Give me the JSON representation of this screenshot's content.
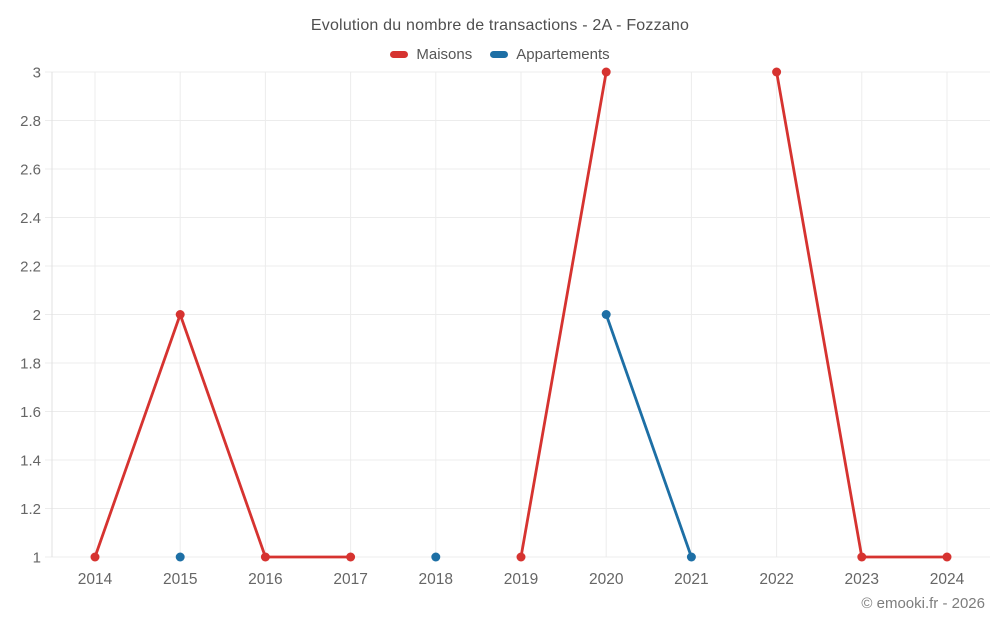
{
  "header": {
    "title": "Evolution du nombre de transactions - 2A - Fozzano"
  },
  "legend": {
    "items": [
      {
        "label": "Maisons",
        "color": "#d63330"
      },
      {
        "label": "Appartements",
        "color": "#1d6fa5"
      }
    ]
  },
  "footer": {
    "attribution": "© emooki.fr - 2026"
  },
  "chart_data": {
    "type": "line",
    "title": "Evolution du nombre de transactions - 2A - Fozzano",
    "categories": [
      2014,
      2015,
      2016,
      2017,
      2018,
      2019,
      2020,
      2021,
      2022,
      2023,
      2024
    ],
    "series": [
      {
        "name": "Maisons",
        "color": "#d63330",
        "values": [
          1,
          2,
          1,
          1,
          null,
          1,
          3,
          null,
          3,
          1,
          1
        ]
      },
      {
        "name": "Appartements",
        "color": "#1d6fa5",
        "values": [
          null,
          1,
          null,
          null,
          1,
          null,
          2,
          1,
          null,
          null,
          null
        ]
      }
    ],
    "ylim": [
      1,
      3
    ],
    "yticks": [
      1,
      1.2,
      1.4,
      1.6,
      1.8,
      2,
      2.2,
      2.4,
      2.6,
      2.8,
      3
    ],
    "grid": true,
    "legend_position": "top",
    "colors": {
      "gridline": "#ececec",
      "axis": "#e0e0e0",
      "tick_label": "#666666"
    },
    "attribution": "© emooki.fr - 2026"
  }
}
